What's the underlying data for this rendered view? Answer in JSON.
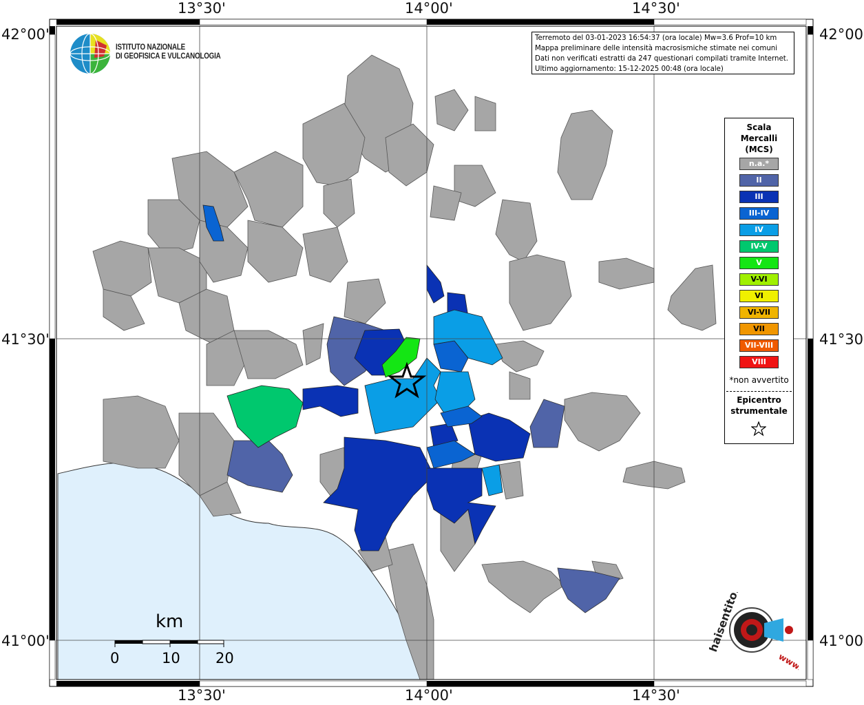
{
  "info": {
    "line1": "Terremoto del 03-01-2023 16:54:37 (ora locale) Mw=3.6 Prof=10 km",
    "line2": "Mappa preliminare delle intensità macrosismiche stimate nei comuni",
    "line3": "Dati non verificati estratti da 247 questionari compilati tramite Internet.",
    "line4": "Ultimo aggiornamento: 15-12-2025 00:48 (ora locale)"
  },
  "logo": {
    "line1": "ISTITUTO NAZIONALE",
    "line2": "DI GEOFISICA E VULCANOLOGIA"
  },
  "coords": {
    "top": [
      "13°30'",
      "14°00'",
      "14°30'"
    ],
    "bottom": [
      "13°30'",
      "14°00'",
      "14°30'"
    ],
    "left": [
      "42°00'",
      "41°30'",
      "41°00'"
    ],
    "right": [
      "42°00'",
      "41°30'",
      "41°00'"
    ]
  },
  "legend": {
    "title_line1": "Scala",
    "title_line2": "Mercalli",
    "title_line3": "(MCS)",
    "items": [
      {
        "label": "n.a.*",
        "color": "#a6a6a6"
      },
      {
        "label": "II",
        "color": "#5064a8"
      },
      {
        "label": "III",
        "color": "#0a32b4"
      },
      {
        "label": "III-IV",
        "color": "#0a64d2"
      },
      {
        "label": "IV",
        "color": "#0a9ee6"
      },
      {
        "label": "IV-V",
        "color": "#00c86e"
      },
      {
        "label": "V",
        "color": "#14e614"
      },
      {
        "label": "V-VI",
        "color": "#a0f000"
      },
      {
        "label": "VI",
        "color": "#f0f000"
      },
      {
        "label": "VI-VII",
        "color": "#f0b400"
      },
      {
        "label": "VII",
        "color": "#f09600"
      },
      {
        "label": "VII-VIII",
        "color": "#f05a00"
      },
      {
        "label": "VIII",
        "color": "#f01414"
      }
    ],
    "note": "*non avvertito",
    "epicenter_line1": "Epicentro",
    "epicenter_line2": "strumentale"
  },
  "scale": {
    "unit": "km",
    "ticks": [
      "0",
      "10",
      "20"
    ]
  },
  "watermark": {
    "text": "haisentitoilterremoto.it",
    "url": "www."
  },
  "colors": {
    "sea": "#dff0fc",
    "na": "#a6a6a6",
    "II": "#5064a8",
    "III": "#0a32b4",
    "III-IV": "#0a64d2",
    "IV": "#0a9ee6",
    "IV-V": "#00c86e",
    "V": "#14e614"
  }
}
